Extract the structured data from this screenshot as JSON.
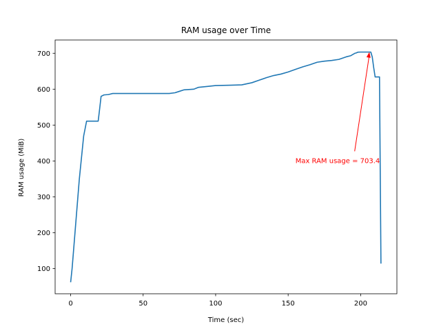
{
  "chart_data": {
    "type": "line",
    "title": "RAM usage over Time",
    "xlabel": "Time (sec)",
    "ylabel": "RAM usage (MiB)",
    "xlim": [
      -10.7,
      225
    ],
    "ylim": [
      30,
      737
    ],
    "xticks": [
      0,
      50,
      100,
      150,
      200
    ],
    "yticks": [
      100,
      200,
      300,
      400,
      500,
      600,
      700
    ],
    "grid": false,
    "series": [
      {
        "color": "#1f77b4",
        "x": [
          0,
          1,
          2,
          4,
          6,
          8,
          9,
          11,
          13,
          15,
          18,
          19,
          20,
          21,
          23,
          26,
          27,
          29,
          33,
          40,
          50,
          60,
          68,
          72,
          75,
          78,
          85,
          88,
          95,
          100,
          110,
          118,
          125,
          130,
          135,
          140,
          145,
          150,
          155,
          160,
          165,
          170,
          175,
          180,
          185,
          190,
          193,
          196,
          197,
          198,
          200,
          205,
          207,
          208,
          209,
          210,
          212,
          213,
          214
        ],
        "y": [
          62,
          100,
          150,
          250,
          350,
          430,
          470,
          511,
          511,
          511,
          511,
          511,
          545,
          580,
          584,
          585,
          586,
          588,
          588,
          588,
          588,
          588,
          588,
          590,
          594,
          598,
          600,
          605,
          608,
          610,
          611,
          612,
          618,
          625,
          632,
          638,
          642,
          648,
          655,
          662,
          668,
          675,
          678,
          680,
          683,
          690,
          693,
          700,
          701,
          703,
          703.4,
          703.4,
          703.4,
          690,
          660,
          634,
          634,
          634,
          114
        ]
      }
    ],
    "annotation": {
      "text": "Max RAM usage = 703.4",
      "color": "#ff0000",
      "xy": [
        206,
        703.4
      ],
      "xytext": [
        155,
        402
      ]
    }
  }
}
